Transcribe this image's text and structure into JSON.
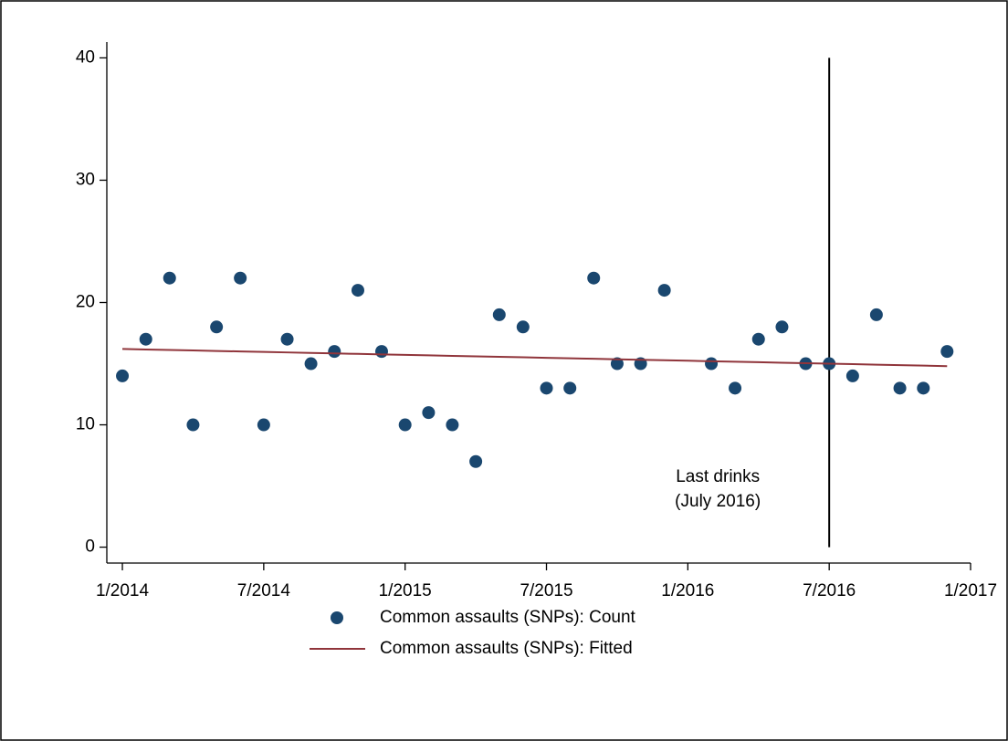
{
  "chart_data": {
    "type": "scatter",
    "x": [
      2014.0,
      2014.083,
      2014.167,
      2014.25,
      2014.333,
      2014.417,
      2014.5,
      2014.583,
      2014.667,
      2014.75,
      2014.833,
      2014.917,
      2015.0,
      2015.083,
      2015.167,
      2015.25,
      2015.333,
      2015.417,
      2015.5,
      2015.583,
      2015.667,
      2015.75,
      2015.833,
      2015.917,
      2016.0,
      2016.083,
      2016.167,
      2016.25,
      2016.333,
      2016.417,
      2016.5,
      2016.583,
      2016.667,
      2016.75,
      2016.833,
      2016.917
    ],
    "series": [
      {
        "name": "Common assaults (SNPs): Count",
        "style": "markers",
        "color": "#1a476f",
        "values": [
          14,
          17,
          22,
          10,
          18,
          22,
          10,
          17,
          15,
          16,
          21,
          16,
          10,
          11,
          10,
          7,
          19,
          18,
          13,
          13,
          22,
          15,
          15,
          21,
          null,
          15,
          13,
          17,
          18,
          15,
          15,
          14,
          19,
          13,
          13,
          16
        ]
      },
      {
        "name": "Common assaults (SNPs): Fitted",
        "style": "line",
        "color": "#90353b",
        "values": [
          16.2,
          16.16,
          16.12,
          16.08,
          16.04,
          16.0,
          15.96,
          15.92,
          15.88,
          15.84,
          15.8,
          15.76,
          15.72,
          15.68,
          15.64,
          15.6,
          15.56,
          15.52,
          15.48,
          15.44,
          15.4,
          15.36,
          15.32,
          15.28,
          15.24,
          15.2,
          15.16,
          15.12,
          15.08,
          15.04,
          15.0,
          14.96,
          14.92,
          14.88,
          14.84,
          14.8
        ]
      }
    ],
    "xlim": [
      2013.945,
      2017.0
    ],
    "xticks": [
      {
        "value": 2014.0,
        "label": "1/2014"
      },
      {
        "value": 2014.5,
        "label": "7/2014"
      },
      {
        "value": 2015.0,
        "label": "1/2015"
      },
      {
        "value": 2015.5,
        "label": "7/2015"
      },
      {
        "value": 2016.0,
        "label": "1/2016"
      },
      {
        "value": 2016.5,
        "label": "7/2016"
      },
      {
        "value": 2017.0,
        "label": "1/2017"
      }
    ],
    "ylim": [
      -1.3,
      41.3
    ],
    "yticks": [
      0,
      10,
      20,
      30,
      40
    ],
    "vline": {
      "x": 2016.5,
      "ymin": 0,
      "ymax": 40,
      "text": [
        "Last drinks",
        "(July 2016)"
      ]
    },
    "legend": "bottom"
  }
}
